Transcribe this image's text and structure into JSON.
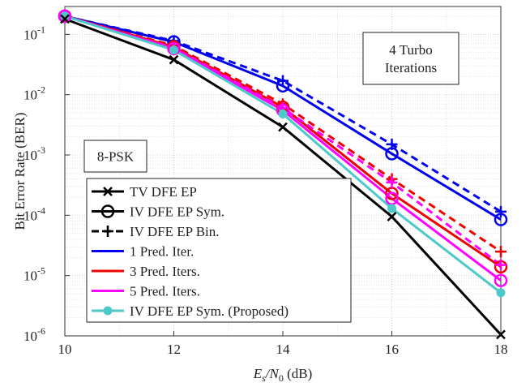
{
  "chart_data": {
    "type": "line",
    "log_y": true,
    "grid": true,
    "minor_grid": true,
    "ylabel": "Bit Error Rate (BER)",
    "xlabel": [
      "E",
      "s",
      "/N",
      "0",
      " (dB)"
    ],
    "x": [
      10,
      12,
      14,
      16,
      18
    ],
    "xlim": [
      10,
      18
    ],
    "xticks": [
      10,
      12,
      14,
      16,
      18
    ],
    "ylim": [
      1e-06,
      0.29
    ],
    "yticks": [
      {
        "value": 1e-06,
        "label": "10",
        "exponent": "-6"
      },
      {
        "value": 1e-05,
        "label": "10",
        "exponent": "-5"
      },
      {
        "value": 0.0001,
        "label": "10",
        "exponent": "-4"
      },
      {
        "value": 0.001,
        "label": "10",
        "exponent": "-3"
      },
      {
        "value": 0.01,
        "label": "10",
        "exponent": "-2"
      },
      {
        "value": 0.1,
        "label": "10",
        "exponent": "-1"
      }
    ],
    "annotations": [
      {
        "lines": [
          "4 Turbo",
          "Iterations"
        ]
      },
      {
        "lines": [
          "8-PSK"
        ]
      }
    ],
    "legend": [
      {
        "label": "TV DFE EP",
        "color": "#000000",
        "marker": "x",
        "dash": false
      },
      {
        "label": "IV DFE EP Sym.",
        "color": "#000000",
        "marker": "o",
        "dash": false
      },
      {
        "label": "IV DFE EP Bin.",
        "color": "#000000",
        "marker": "+",
        "dash": true
      },
      {
        "label": "1 Pred. Iter.",
        "color": "#0000ee",
        "marker": "none",
        "dash": false
      },
      {
        "label": "3 Pred. Iters.",
        "color": "#ee0000",
        "marker": "none",
        "dash": false
      },
      {
        "label": "5 Pred. Iters.",
        "color": "#ff00ff",
        "marker": "none",
        "dash": false
      },
      {
        "label": "IV DFE EP Sym. (Proposed)",
        "color": "#4dc9c9",
        "marker": "dot",
        "dash": false
      }
    ],
    "series": [
      {
        "color": "#0000ee",
        "marker": "+",
        "dash": true,
        "values": [
          0.2,
          0.078,
          0.017,
          0.0015,
          0.000115
        ]
      },
      {
        "color": "#0000ee",
        "marker": "o",
        "dash": false,
        "values": [
          0.2,
          0.075,
          0.014,
          0.00105,
          8.5e-05
        ]
      },
      {
        "color": "#ee0000",
        "marker": "+",
        "dash": true,
        "values": [
          0.2,
          0.065,
          0.007,
          0.0004,
          2.5e-05
        ]
      },
      {
        "color": "#ee0000",
        "marker": "o",
        "dash": false,
        "values": [
          0.2,
          0.062,
          0.0062,
          0.00023,
          1.4e-05
        ]
      },
      {
        "color": "#ff00ff",
        "marker": "+",
        "dash": true,
        "values": [
          0.2,
          0.06,
          0.006,
          0.00035,
          1.5e-05
        ]
      },
      {
        "color": "#ff00ff",
        "marker": "o",
        "dash": false,
        "values": [
          0.2,
          0.058,
          0.0055,
          0.00019,
          8.3e-06
        ]
      },
      {
        "color": "#4dc9c9",
        "marker": "dot",
        "dash": false,
        "values": [
          0.2,
          0.055,
          0.0048,
          0.00013,
          5.2e-06
        ]
      },
      {
        "color": "#000000",
        "marker": "x",
        "dash": false,
        "values": [
          0.18,
          0.038,
          0.0029,
          9.5e-05,
          1.05e-06
        ]
      }
    ]
  }
}
